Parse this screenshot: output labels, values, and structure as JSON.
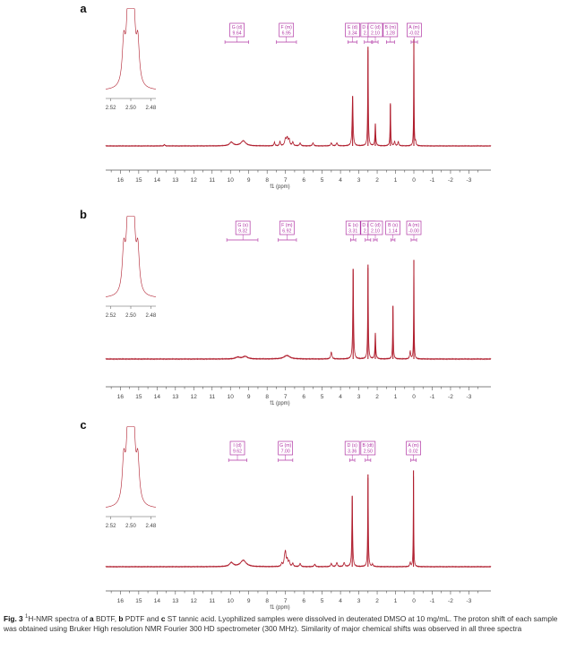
{
  "figure": {
    "caption": {
      "label": "Fig. 3",
      "sup": "1",
      "part1": "H-NMR spectra of ",
      "a": "a",
      "part2": " BDTF, ",
      "b": "b",
      "part3": " PDTF and ",
      "c": "c",
      "part4": " ST tannic acid. Lyophilized samples were dissolved in deuterated DMSO at 10 mg/mL. The proton shift of each sample was obtained using Bruker High resolution NMR Fourier 300 HD spectrometer (300 MHz). Similarity of major chemical shifts was observed in all three spectra"
    }
  },
  "chart_data": [
    {
      "panel": "a",
      "type": "line",
      "xlabel": "f1 (ppm)",
      "xlim": [
        16.8,
        -4.2
      ],
      "xticks": [
        16,
        15,
        14,
        13,
        12,
        11,
        10,
        9,
        8,
        7,
        6,
        5,
        4,
        3,
        2,
        1,
        0,
        -1,
        -2,
        -3
      ],
      "baseline": 0.05,
      "peaks": [
        {
          "x": 13.6,
          "y": 0.02,
          "w": 0.03
        },
        {
          "x": 9.95,
          "y": 0.05,
          "w": 0.12
        },
        {
          "x": 9.3,
          "y": 0.07,
          "w": 0.15
        },
        {
          "x": 7.6,
          "y": 0.05,
          "w": 0.03
        },
        {
          "x": 7.3,
          "y": 0.06,
          "w": 0.03
        },
        {
          "x": 7.0,
          "y": 0.09,
          "w": 0.05
        },
        {
          "x": 6.9,
          "y": 0.1,
          "w": 0.05
        },
        {
          "x": 6.8,
          "y": 0.08,
          "w": 0.04
        },
        {
          "x": 6.6,
          "y": 0.05,
          "w": 0.04
        },
        {
          "x": 6.2,
          "y": 0.04,
          "w": 0.04
        },
        {
          "x": 5.5,
          "y": 0.04,
          "w": 0.04
        },
        {
          "x": 4.5,
          "y": 0.04,
          "w": 0.04
        },
        {
          "x": 4.2,
          "y": 0.04,
          "w": 0.04
        },
        {
          "x": 3.34,
          "y": 0.68,
          "w": 0.03
        },
        {
          "x": 2.5,
          "y": 1.35,
          "w": 0.02
        },
        {
          "x": 2.1,
          "y": 0.3,
          "w": 0.025
        },
        {
          "x": 1.28,
          "y": 0.58,
          "w": 0.02
        },
        {
          "x": 1.05,
          "y": 0.06,
          "w": 0.03
        },
        {
          "x": 0.85,
          "y": 0.06,
          "w": 0.03
        },
        {
          "x": 0.0,
          "y": 1.45,
          "w": 0.015
        },
        {
          "x": -0.1,
          "y": 0.05,
          "w": 0.02
        }
      ],
      "annotations": [
        {
          "label": "G (d)",
          "value": "9.64",
          "x": 9.64,
          "x1": 10.3,
          "x2": 9.0
        },
        {
          "label": "F (m)",
          "value": "6.95",
          "x": 6.95,
          "x1": 7.5,
          "x2": 6.4
        },
        {
          "label": "E (d)",
          "value": "3.34",
          "x": 3.34,
          "x1": 3.6,
          "x2": 3.1
        },
        {
          "label": "D (dt)",
          "value": "2.50",
          "x": 2.5,
          "x1": 2.7,
          "x2": 2.3
        },
        {
          "label": "C (d)",
          "value": "2.10",
          "x": 2.1,
          "x1": 2.25,
          "x2": 1.95
        },
        {
          "label": "B (m)",
          "value": "1.28",
          "x": 1.28,
          "x1": 1.5,
          "x2": 1.05
        },
        {
          "label": "A (m)",
          "value": "-0.02",
          "x": -0.02,
          "x1": 0.15,
          "x2": -0.2
        }
      ],
      "inset": {
        "xticks": [
          "2.52",
          "2.50",
          "2.48"
        ],
        "peaks": [
          {
            "x": 2.507,
            "y": 0.52,
            "w": 0.0018
          },
          {
            "x": 2.503,
            "y": 0.75,
            "w": 0.0018
          },
          {
            "x": 2.5,
            "y": 1.0,
            "w": 0.0018
          },
          {
            "x": 2.497,
            "y": 0.75,
            "w": 0.0018
          },
          {
            "x": 2.493,
            "y": 0.52,
            "w": 0.0018
          }
        ]
      }
    },
    {
      "panel": "b",
      "type": "line",
      "xlabel": "f1 (ppm)",
      "xlim": [
        16.8,
        -4.2
      ],
      "xticks": [
        16,
        15,
        14,
        13,
        12,
        11,
        10,
        9,
        8,
        7,
        6,
        5,
        4,
        3,
        2,
        1,
        0,
        -1,
        -2,
        -3
      ],
      "baseline": 0.03,
      "peaks": [
        {
          "x": 9.6,
          "y": 0.02,
          "w": 0.15
        },
        {
          "x": 9.2,
          "y": 0.03,
          "w": 0.15
        },
        {
          "x": 6.92,
          "y": 0.04,
          "w": 0.2
        },
        {
          "x": 4.5,
          "y": 0.08,
          "w": 0.04
        },
        {
          "x": 3.31,
          "y": 1.05,
          "w": 0.025
        },
        {
          "x": 2.5,
          "y": 1.1,
          "w": 0.02
        },
        {
          "x": 2.1,
          "y": 0.3,
          "w": 0.025
        },
        {
          "x": 1.14,
          "y": 0.62,
          "w": 0.02
        },
        {
          "x": 0.2,
          "y": 0.09,
          "w": 0.03
        },
        {
          "x": 0.0,
          "y": 1.15,
          "w": 0.015
        }
      ],
      "annotations": [
        {
          "label": "G (s)",
          "value": "9.32",
          "x": 9.32,
          "x1": 10.2,
          "x2": 8.5
        },
        {
          "label": "F (m)",
          "value": "6.92",
          "x": 6.92,
          "x1": 7.4,
          "x2": 6.4
        },
        {
          "label": "E (s)",
          "value": "3.31",
          "x": 3.31,
          "x1": 3.45,
          "x2": 3.17
        },
        {
          "label": "D (td)",
          "value": "2.50",
          "x": 2.5,
          "x1": 2.65,
          "x2": 2.35
        },
        {
          "label": "C (d)",
          "value": "2.10",
          "x": 2.1,
          "x1": 2.2,
          "x2": 2.0
        },
        {
          "label": "B (s)",
          "value": "1.14",
          "x": 1.14,
          "x1": 1.25,
          "x2": 1.03
        },
        {
          "label": "A (m)",
          "value": "-0.00",
          "x": 0.0,
          "x1": 0.15,
          "x2": -0.15
        }
      ],
      "inset": {
        "xticks": [
          "2.52",
          "2.50",
          "2.48"
        ],
        "peaks": [
          {
            "x": 2.507,
            "y": 0.52,
            "w": 0.0018
          },
          {
            "x": 2.503,
            "y": 0.75,
            "w": 0.0018
          },
          {
            "x": 2.5,
            "y": 1.0,
            "w": 0.0018
          },
          {
            "x": 2.497,
            "y": 0.75,
            "w": 0.0018
          },
          {
            "x": 2.493,
            "y": 0.52,
            "w": 0.0018
          }
        ]
      }
    },
    {
      "panel": "c",
      "type": "line",
      "xlabel": "f1 (ppm)",
      "xlim": [
        16.8,
        -4.2
      ],
      "xticks": [
        16,
        15,
        14,
        13,
        12,
        11,
        10,
        9,
        8,
        7,
        6,
        5,
        4,
        3,
        2,
        1,
        0,
        -1,
        -2,
        -3
      ],
      "baseline": 0.02,
      "peaks": [
        {
          "x": 9.95,
          "y": 0.05,
          "w": 0.12
        },
        {
          "x": 9.3,
          "y": 0.08,
          "w": 0.18
        },
        {
          "x": 7.2,
          "y": 0.04,
          "w": 0.04
        },
        {
          "x": 7.05,
          "y": 0.08,
          "w": 0.04
        },
        {
          "x": 7.0,
          "y": 0.16,
          "w": 0.04
        },
        {
          "x": 6.9,
          "y": 0.08,
          "w": 0.04
        },
        {
          "x": 6.8,
          "y": 0.06,
          "w": 0.04
        },
        {
          "x": 6.6,
          "y": 0.04,
          "w": 0.04
        },
        {
          "x": 6.2,
          "y": 0.04,
          "w": 0.04
        },
        {
          "x": 5.4,
          "y": 0.03,
          "w": 0.04
        },
        {
          "x": 4.5,
          "y": 0.04,
          "w": 0.04
        },
        {
          "x": 4.2,
          "y": 0.05,
          "w": 0.04
        },
        {
          "x": 3.8,
          "y": 0.05,
          "w": 0.04
        },
        {
          "x": 3.36,
          "y": 0.88,
          "w": 0.025
        },
        {
          "x": 2.5,
          "y": 1.15,
          "w": 0.02
        },
        {
          "x": 2.25,
          "y": 0.03,
          "w": 0.03
        },
        {
          "x": 0.2,
          "y": 0.05,
          "w": 0.03
        },
        {
          "x": 0.02,
          "y": 1.2,
          "w": 0.015
        }
      ],
      "annotations": [
        {
          "label": "I (d)",
          "value": "9.62",
          "x": 9.62,
          "x1": 10.1,
          "x2": 9.1
        },
        {
          "label": "G (m)",
          "value": "7.00",
          "x": 7.0,
          "x1": 7.4,
          "x2": 6.6
        },
        {
          "label": "D (s)",
          "value": "3.36",
          "x": 3.36,
          "x1": 3.5,
          "x2": 3.22
        },
        {
          "label": "B (dt)",
          "value": "2.50",
          "x": 2.5,
          "x1": 2.65,
          "x2": 2.35
        },
        {
          "label": "A (m)",
          "value": "0.02",
          "x": 0.02,
          "x1": 0.17,
          "x2": -0.13
        }
      ],
      "inset": {
        "xticks": [
          "2.52",
          "2.50",
          "2.48"
        ],
        "peaks": [
          {
            "x": 2.507,
            "y": 0.52,
            "w": 0.0018
          },
          {
            "x": 2.503,
            "y": 0.75,
            "w": 0.0018
          },
          {
            "x": 2.5,
            "y": 1.0,
            "w": 0.0018
          },
          {
            "x": 2.497,
            "y": 0.75,
            "w": 0.0018
          },
          {
            "x": 2.493,
            "y": 0.52,
            "w": 0.0018
          }
        ]
      }
    }
  ]
}
